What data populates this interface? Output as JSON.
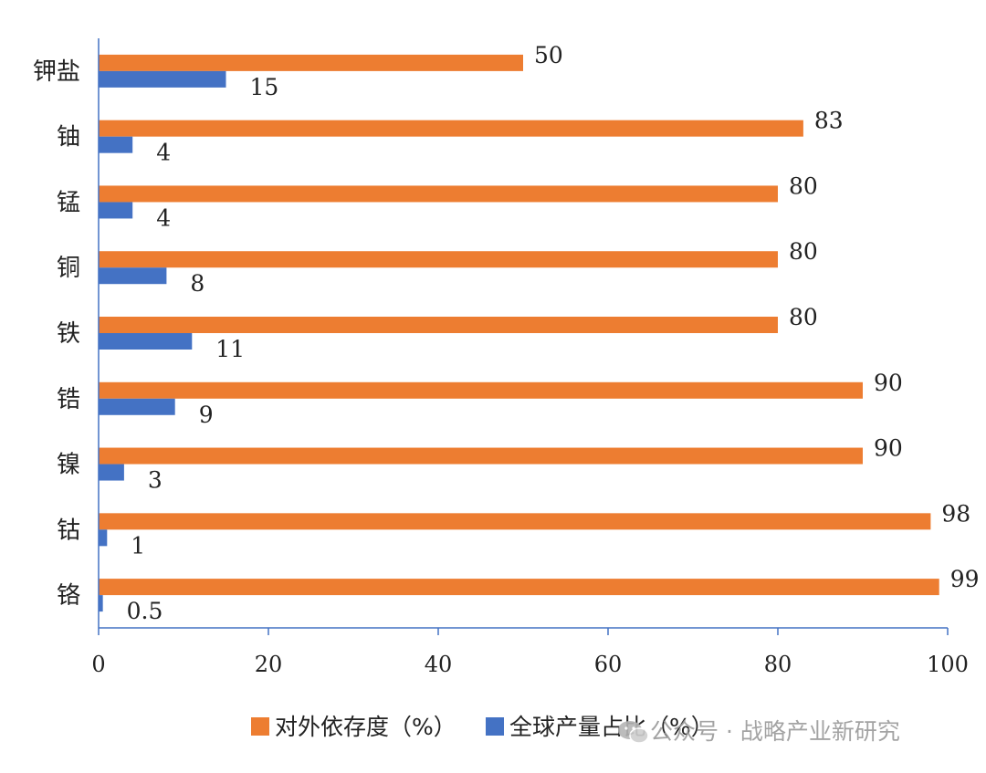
{
  "chart_data": {
    "type": "bar",
    "orientation": "horizontal",
    "categories": [
      "钾盐",
      "铀",
      "锰",
      "铜",
      "铁",
      "锆",
      "镍",
      "钴",
      "铬"
    ],
    "series": [
      {
        "name": "对外依存度（%）",
        "color": "#ED7D31",
        "values": [
          50,
          83,
          80,
          80,
          80,
          90,
          90,
          98,
          99
        ],
        "labels": [
          "50",
          "83",
          "80",
          "80",
          "80",
          "90",
          "90",
          "98",
          "99"
        ]
      },
      {
        "name": "全球产量占比（%）",
        "color": "#4472C4",
        "values": [
          15,
          4,
          4,
          8,
          11,
          9,
          3,
          1,
          0.5
        ],
        "labels": [
          "15",
          "4",
          "4",
          "8",
          "11",
          "9",
          "3",
          "1",
          "0.5"
        ]
      }
    ],
    "xlim": [
      0,
      100
    ],
    "x_ticks": [
      "0",
      "20",
      "40",
      "60",
      "80",
      "100"
    ],
    "axis_color": "#4472C4",
    "grid": false,
    "legend_position": "bottom"
  },
  "watermark": {
    "icon": "wechat-icon",
    "text": "公众号 · 战略产业新研究"
  }
}
